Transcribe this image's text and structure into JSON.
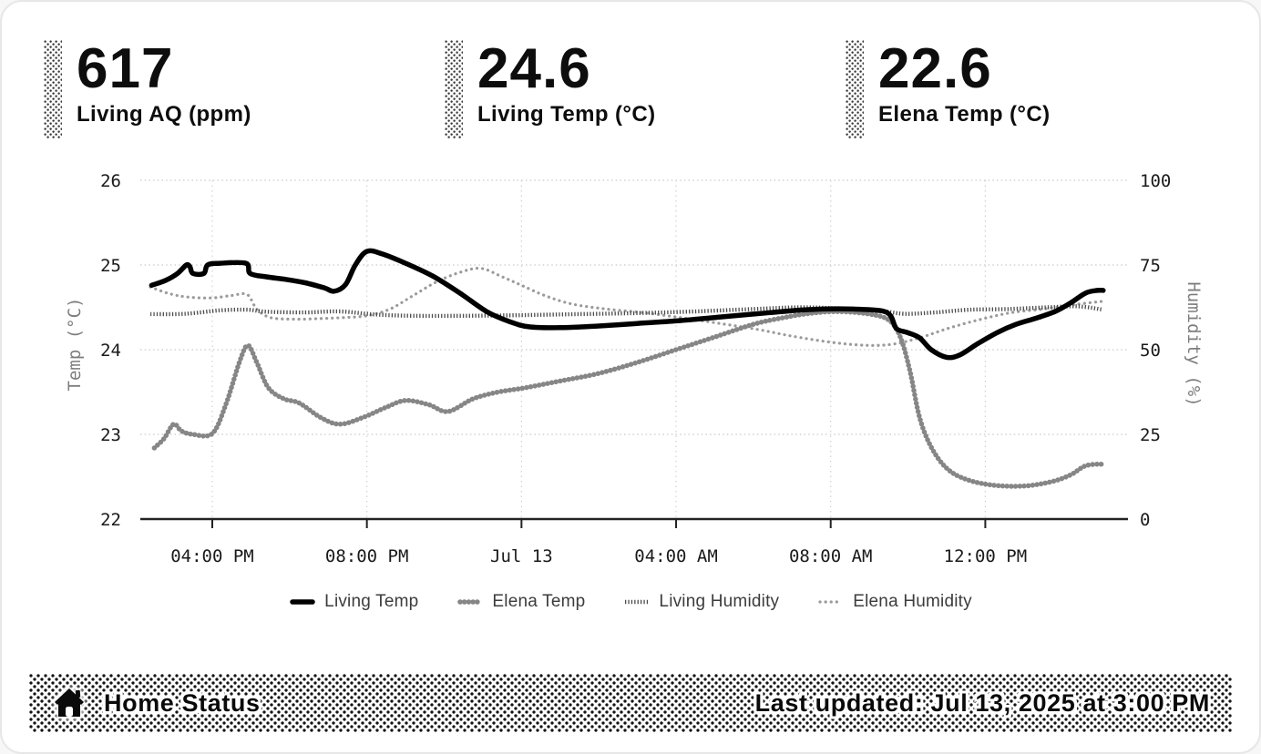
{
  "stats": [
    {
      "value": "617",
      "label": "Living AQ (ppm)"
    },
    {
      "value": "24.6",
      "label": "Living Temp (°C)"
    },
    {
      "value": "22.6",
      "label": "Elena Temp (°C)"
    }
  ],
  "footer": {
    "title": "Home Status",
    "last_updated": "Last updated: Jul 13, 2025 at 3:00 PM",
    "icon": "home-icon"
  },
  "colors": {
    "ink": "#000000",
    "elena_temp": "#868686",
    "living_humidity": "#4c4c4c",
    "elena_humidity": "#9b9b9b",
    "gridline": "#d2d2d2",
    "axis": "#222222",
    "axis_title": "#7d7d7d"
  },
  "chart_data": {
    "type": "line",
    "title": "",
    "x_note": "hours since Jul 12 00:00",
    "x_domain": [
      14.1,
      39.75
    ],
    "x_ticks": [
      {
        "t": 16,
        "label": "04:00 PM"
      },
      {
        "t": 20,
        "label": "08:00 PM"
      },
      {
        "t": 24,
        "label": "Jul 13"
      },
      {
        "t": 28,
        "label": "04:00 AM"
      },
      {
        "t": 32,
        "label": "08:00 AM"
      },
      {
        "t": 36,
        "label": "12:00 PM"
      }
    ],
    "y_left": {
      "label": "Temp (°C)",
      "min": 22,
      "max": 26,
      "ticks": [
        26,
        25,
        24,
        23,
        22
      ]
    },
    "y_right": {
      "label": "Humidity (%)",
      "min": 0,
      "max": 100,
      "ticks": [
        100,
        75,
        50,
        25,
        0
      ]
    },
    "grid": true,
    "legend_position": "bottom",
    "series": [
      {
        "name": "Living Temp",
        "axis": "left",
        "pattern": "solid",
        "color": "#000000",
        "points": [
          [
            14.43,
            24.76
          ],
          [
            14.8,
            24.82
          ],
          [
            15.1,
            24.9
          ],
          [
            15.33,
            25.0
          ],
          [
            15.42,
            24.98
          ],
          [
            15.5,
            24.9
          ],
          [
            15.78,
            24.9
          ],
          [
            15.88,
            25.0
          ],
          [
            16.2,
            25.02
          ],
          [
            16.87,
            25.02
          ],
          [
            16.98,
            24.9
          ],
          [
            17.4,
            24.86
          ],
          [
            17.9,
            24.83
          ],
          [
            18.4,
            24.79
          ],
          [
            18.9,
            24.73
          ],
          [
            19.15,
            24.69
          ],
          [
            19.45,
            24.77
          ],
          [
            19.7,
            25.0
          ],
          [
            20.0,
            25.16
          ],
          [
            20.4,
            25.13
          ],
          [
            21.0,
            25.02
          ],
          [
            21.7,
            24.87
          ],
          [
            22.4,
            24.67
          ],
          [
            23.1,
            24.45
          ],
          [
            23.7,
            24.33
          ],
          [
            24.2,
            24.27
          ],
          [
            25.0,
            24.26
          ],
          [
            26.0,
            24.28
          ],
          [
            27.0,
            24.31
          ],
          [
            28.0,
            24.34
          ],
          [
            29.0,
            24.38
          ],
          [
            30.0,
            24.42
          ],
          [
            31.0,
            24.46
          ],
          [
            31.8,
            24.48
          ],
          [
            32.6,
            24.48
          ],
          [
            33.3,
            24.46
          ],
          [
            33.55,
            24.4
          ],
          [
            33.7,
            24.25
          ],
          [
            34.0,
            24.2
          ],
          [
            34.3,
            24.14
          ],
          [
            34.6,
            24.0
          ],
          [
            35.0,
            23.91
          ],
          [
            35.35,
            23.94
          ],
          [
            35.8,
            24.07
          ],
          [
            36.3,
            24.2
          ],
          [
            36.8,
            24.3
          ],
          [
            37.3,
            24.37
          ],
          [
            37.8,
            24.45
          ],
          [
            38.2,
            24.55
          ],
          [
            38.6,
            24.67
          ],
          [
            38.9,
            24.7
          ],
          [
            39.05,
            24.7
          ]
        ]
      },
      {
        "name": "Elena Temp",
        "axis": "left",
        "pattern": "dot-chain",
        "color": "#868686",
        "points": [
          [
            14.5,
            22.84
          ],
          [
            14.75,
            22.95
          ],
          [
            15.0,
            23.12
          ],
          [
            15.2,
            23.04
          ],
          [
            15.5,
            23.0
          ],
          [
            16.0,
            23.01
          ],
          [
            16.35,
            23.35
          ],
          [
            16.7,
            23.85
          ],
          [
            16.92,
            24.05
          ],
          [
            17.15,
            23.85
          ],
          [
            17.45,
            23.55
          ],
          [
            17.85,
            23.42
          ],
          [
            18.25,
            23.37
          ],
          [
            18.8,
            23.2
          ],
          [
            19.3,
            23.12
          ],
          [
            19.9,
            23.2
          ],
          [
            20.5,
            23.32
          ],
          [
            21.0,
            23.4
          ],
          [
            21.6,
            23.35
          ],
          [
            22.1,
            23.27
          ],
          [
            22.75,
            23.42
          ],
          [
            23.4,
            23.5
          ],
          [
            24.1,
            23.55
          ],
          [
            25.0,
            23.63
          ],
          [
            26.0,
            23.72
          ],
          [
            27.0,
            23.85
          ],
          [
            28.0,
            24.0
          ],
          [
            29.0,
            24.15
          ],
          [
            30.0,
            24.3
          ],
          [
            30.8,
            24.38
          ],
          [
            31.5,
            24.43
          ],
          [
            32.2,
            24.45
          ],
          [
            33.0,
            24.42
          ],
          [
            33.5,
            24.35
          ],
          [
            33.8,
            24.15
          ],
          [
            34.05,
            23.75
          ],
          [
            34.3,
            23.2
          ],
          [
            34.6,
            22.85
          ],
          [
            35.0,
            22.6
          ],
          [
            35.5,
            22.47
          ],
          [
            36.2,
            22.4
          ],
          [
            37.0,
            22.39
          ],
          [
            37.7,
            22.44
          ],
          [
            38.2,
            22.52
          ],
          [
            38.6,
            22.63
          ],
          [
            39.05,
            22.65
          ]
        ]
      },
      {
        "name": "Living Humidity",
        "axis": "right",
        "pattern": "dense-dot",
        "color": "#4c4c4c",
        "points": [
          [
            14.4,
            60.5
          ],
          [
            15.3,
            60.6
          ],
          [
            16.2,
            61.6
          ],
          [
            16.9,
            61.8
          ],
          [
            17.4,
            61.2
          ],
          [
            18.4,
            61.0
          ],
          [
            19.3,
            61.3
          ],
          [
            20.2,
            60.4
          ],
          [
            21.2,
            60.0
          ],
          [
            22.5,
            60.0
          ],
          [
            24.0,
            60.2
          ],
          [
            25.5,
            60.5
          ],
          [
            27.0,
            60.8
          ],
          [
            28.5,
            61.3
          ],
          [
            30.0,
            62.0
          ],
          [
            31.2,
            62.5
          ],
          [
            32.2,
            62.2
          ],
          [
            33.2,
            61.6
          ],
          [
            33.9,
            60.6
          ],
          [
            34.7,
            61.0
          ],
          [
            35.6,
            61.8
          ],
          [
            36.6,
            62.0
          ],
          [
            37.6,
            62.5
          ],
          [
            38.4,
            62.8
          ],
          [
            39.05,
            61.8
          ]
        ]
      },
      {
        "name": "Elena Humidity",
        "axis": "right",
        "pattern": "sparse-dot",
        "color": "#9b9b9b",
        "points": [
          [
            14.4,
            68.5
          ],
          [
            14.9,
            66.5
          ],
          [
            15.4,
            65.5
          ],
          [
            16.0,
            65.3
          ],
          [
            16.5,
            66.0
          ],
          [
            16.9,
            66.3
          ],
          [
            17.15,
            62.0
          ],
          [
            17.5,
            59.5
          ],
          [
            18.1,
            59.0
          ],
          [
            18.8,
            59.2
          ],
          [
            19.4,
            59.5
          ],
          [
            20.0,
            60.0
          ],
          [
            20.6,
            62.0
          ],
          [
            21.2,
            66.0
          ],
          [
            21.8,
            70.0
          ],
          [
            22.4,
            72.8
          ],
          [
            22.95,
            74.0
          ],
          [
            23.5,
            71.5
          ],
          [
            24.0,
            69.0
          ],
          [
            24.6,
            66.0
          ],
          [
            25.3,
            63.5
          ],
          [
            26.2,
            62.0
          ],
          [
            27.1,
            61.0
          ],
          [
            28.1,
            59.5
          ],
          [
            29.1,
            57.8
          ],
          [
            30.1,
            56.0
          ],
          [
            31.0,
            54.0
          ],
          [
            32.0,
            52.2
          ],
          [
            32.9,
            51.3
          ],
          [
            33.6,
            51.6
          ],
          [
            34.3,
            53.5
          ],
          [
            35.1,
            56.5
          ],
          [
            35.9,
            59.0
          ],
          [
            36.7,
            61.0
          ],
          [
            37.5,
            62.0
          ],
          [
            38.3,
            63.3
          ],
          [
            39.05,
            64.3
          ]
        ]
      }
    ]
  }
}
